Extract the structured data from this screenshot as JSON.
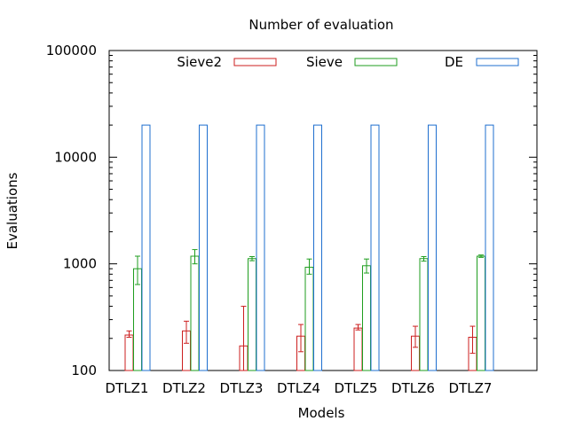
{
  "chart_data": {
    "type": "bar",
    "title": "Number of evaluation",
    "xlabel": "Models",
    "ylabel": "Evaluations",
    "yscale": "log",
    "ylim": [
      100,
      100000
    ],
    "y_ticks": [
      100,
      1000,
      10000,
      100000
    ],
    "y_tick_labels": [
      "100",
      "1000",
      "10000",
      "100000"
    ],
    "categories": [
      "DTLZ1",
      "DTLZ2",
      "DTLZ3",
      "DTLZ4",
      "DTLZ5",
      "DTLZ6",
      "DTLZ7"
    ],
    "grid": false,
    "legend_position": "top",
    "bar_style": "outlined",
    "series": [
      {
        "name": "Sieve2",
        "color": "#cc1f1f",
        "values": [
          215,
          235,
          170,
          210,
          250,
          210,
          205
        ],
        "error_low": [
          205,
          180,
          100,
          150,
          240,
          165,
          145
        ],
        "error_high": [
          235,
          290,
          400,
          270,
          270,
          260,
          260
        ]
      },
      {
        "name": "Sieve",
        "color": "#1f9e1f",
        "values": [
          900,
          1180,
          1120,
          930,
          960,
          1120,
          1180
        ],
        "error_low": [
          640,
          1000,
          1070,
          800,
          820,
          1060,
          1150
        ],
        "error_high": [
          1180,
          1360,
          1170,
          1110,
          1110,
          1170,
          1210
        ]
      },
      {
        "name": "DE",
        "color": "#1f6fcf",
        "values": [
          20000,
          20000,
          20000,
          20000,
          20000,
          20000,
          20000
        ]
      }
    ]
  }
}
